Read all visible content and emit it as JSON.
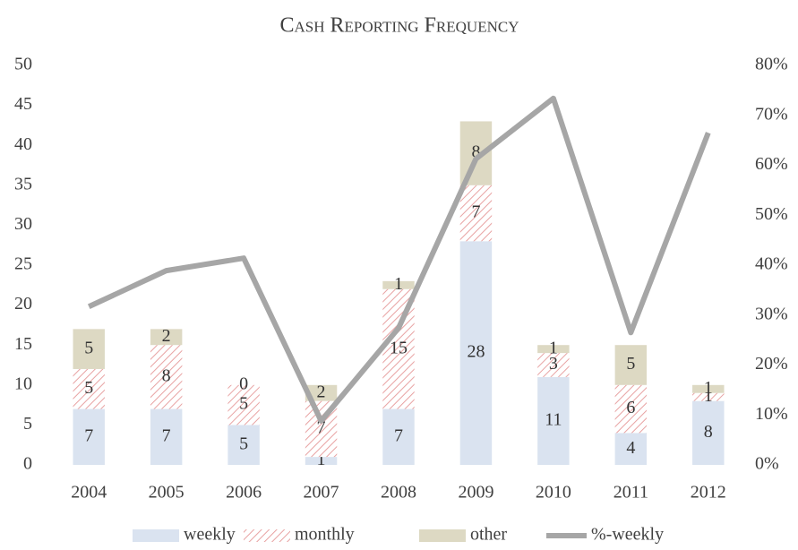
{
  "chart_data": {
    "type": "bar",
    "stacked": true,
    "title": "Cash Reporting Frequency",
    "categories": [
      "2004",
      "2005",
      "2006",
      "2007",
      "2008",
      "2009",
      "2010",
      "2011",
      "2012"
    ],
    "series": [
      {
        "name": "weekly",
        "color": "#dae3f0",
        "values": [
          7,
          7,
          5,
          1,
          7,
          28,
          11,
          4,
          8
        ]
      },
      {
        "name": "monthly",
        "color": "#e8a3a3",
        "hatch": true,
        "values": [
          5,
          8,
          5,
          7,
          15,
          7,
          3,
          6,
          1
        ]
      },
      {
        "name": "other",
        "color": "#ddd9c3",
        "values": [
          5,
          2,
          0,
          2,
          1,
          8,
          1,
          5,
          1
        ]
      },
      {
        "name": "%-weekly",
        "type": "line",
        "axis": "y2",
        "color": "#a6a6a6",
        "values": [
          31.7,
          38.9,
          41.4,
          8.8,
          27.4,
          61.3,
          73.4,
          26.5,
          66.5
        ]
      }
    ],
    "ylim": [
      0,
      50
    ],
    "yticks": [
      0,
      5,
      10,
      15,
      20,
      25,
      30,
      35,
      40,
      45,
      50
    ],
    "y2lim": [
      0,
      80
    ],
    "y2ticks": [
      {
        "value": 0,
        "label": "0%"
      },
      {
        "value": 10,
        "label": "10%"
      },
      {
        "value": 20,
        "label": "20%"
      },
      {
        "value": 30,
        "label": "30%"
      },
      {
        "value": 40,
        "label": "40%"
      },
      {
        "value": 50,
        "label": "50%"
      },
      {
        "value": 60,
        "label": "60%"
      },
      {
        "value": 70,
        "label": "70%"
      },
      {
        "value": 80,
        "label": "80%"
      }
    ],
    "grid": false,
    "legend": "bottom"
  }
}
